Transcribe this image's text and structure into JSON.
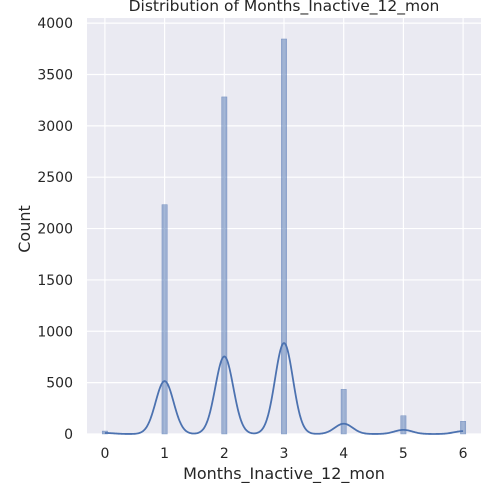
{
  "chart_data": {
    "type": "histogram",
    "title": "Distribution of Months_Inactive_12_mon",
    "xlabel": "Months_Inactive_12_mon",
    "ylabel": "Count",
    "xlim": [
      -0.3,
      6.3
    ],
    "ylim": [
      0,
      4050
    ],
    "x_ticks": [
      "0",
      "1",
      "2",
      "3",
      "4",
      "5",
      "6"
    ],
    "y_ticks": [
      "0",
      "500",
      "1000",
      "1500",
      "2000",
      "2500",
      "3000",
      "3500",
      "4000"
    ],
    "bar_width": 0.09,
    "bars": [
      {
        "x": 0,
        "count": 29
      },
      {
        "x": 1,
        "count": 2233
      },
      {
        "x": 2,
        "count": 3282
      },
      {
        "x": 3,
        "count": 3846
      },
      {
        "x": 4,
        "count": 435
      },
      {
        "x": 5,
        "count": 178
      },
      {
        "x": 6,
        "count": 124
      }
    ],
    "kde": {
      "peaks": [
        {
          "x": 0,
          "y": 10
        },
        {
          "x": 1,
          "y": 515
        },
        {
          "x": 2,
          "y": 755
        },
        {
          "x": 3,
          "y": 885
        },
        {
          "x": 4,
          "y": 100
        },
        {
          "x": 5,
          "y": 40
        },
        {
          "x": 6,
          "y": 28
        }
      ],
      "bandwidth": 0.15
    },
    "grid": true,
    "legend": "none",
    "colors": {
      "background": "#eaeaf2",
      "grid": "#ffffff",
      "bar": "#4c72b0",
      "kde": "#4c72b0"
    }
  }
}
